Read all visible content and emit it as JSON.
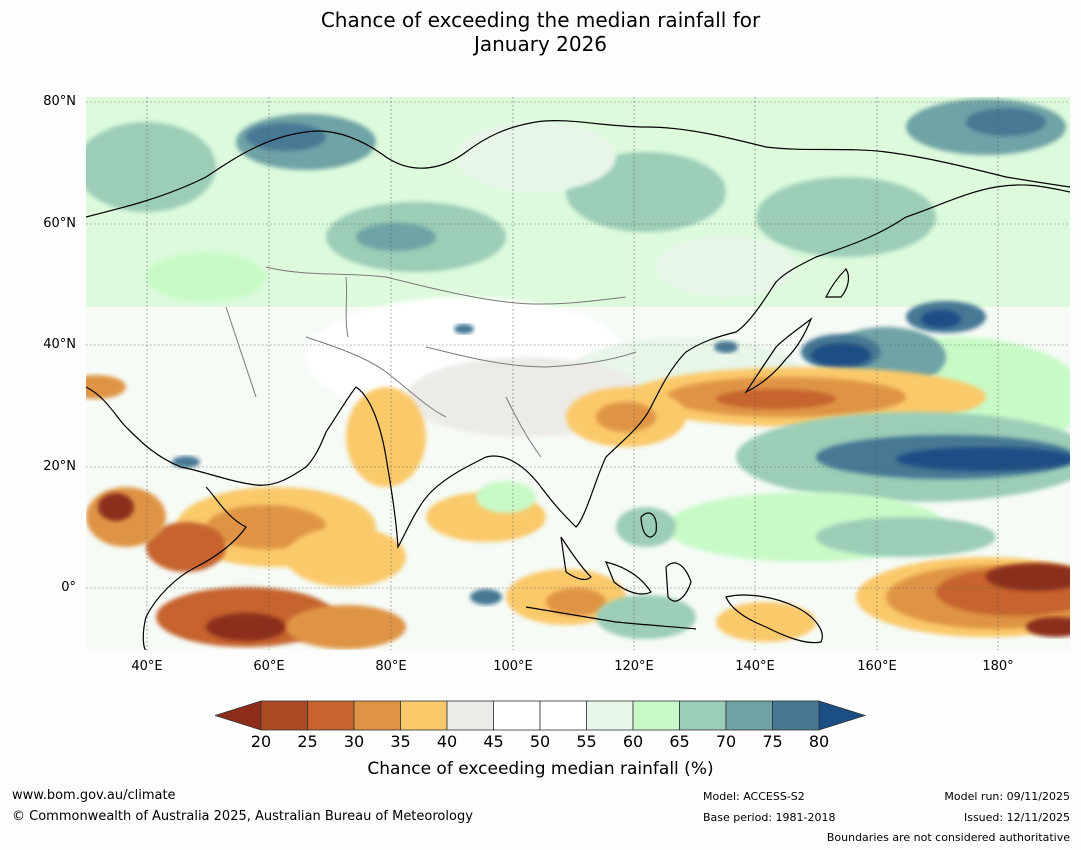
{
  "title_line1": "Chance of exceeding the median rainfall for",
  "title_line2": "January 2026",
  "lat_labels": [
    "80°N",
    "60°N",
    "40°N",
    "20°N",
    "0°"
  ],
  "lon_labels": [
    "40°E",
    "60°E",
    "80°E",
    "100°E",
    "120°E",
    "140°E",
    "160°E",
    "180°"
  ],
  "legend": {
    "ticks": [
      "20",
      "25",
      "30",
      "35",
      "40",
      "45",
      "50",
      "55",
      "60",
      "65",
      "70",
      "75",
      "80"
    ],
    "colors": {
      "below20": "#8c2d1a",
      "c20_25": "#ad4a25",
      "c25_30": "#c6632f",
      "c30_35": "#df9445",
      "c35_40": "#fac96a",
      "c40_45": "#edebe7",
      "c45_50": "#ffffff",
      "c50_55": "#ffffff",
      "c55_60": "#e8f5e9",
      "c60_65": "#c8fac7",
      "c65_70": "#9bcdb7",
      "c70_75": "#6fa3a6",
      "c75_80": "#467894",
      "above80": "#1a4e85"
    },
    "title": "Chance of exceeding median rainfall (%)"
  },
  "footer": {
    "url": "www.bom.gov.au/climate",
    "copyright": "© Commonwealth of Australia 2025, Australian Bureau of Meteorology",
    "model": "Model: ACCESS-S2",
    "base_period": "Base period: 1981-2018",
    "model_run": "Model run: 09/11/2025",
    "issued": "Issued: 12/11/2025",
    "disclaimer": "Boundaries are not considered authoritative"
  }
}
